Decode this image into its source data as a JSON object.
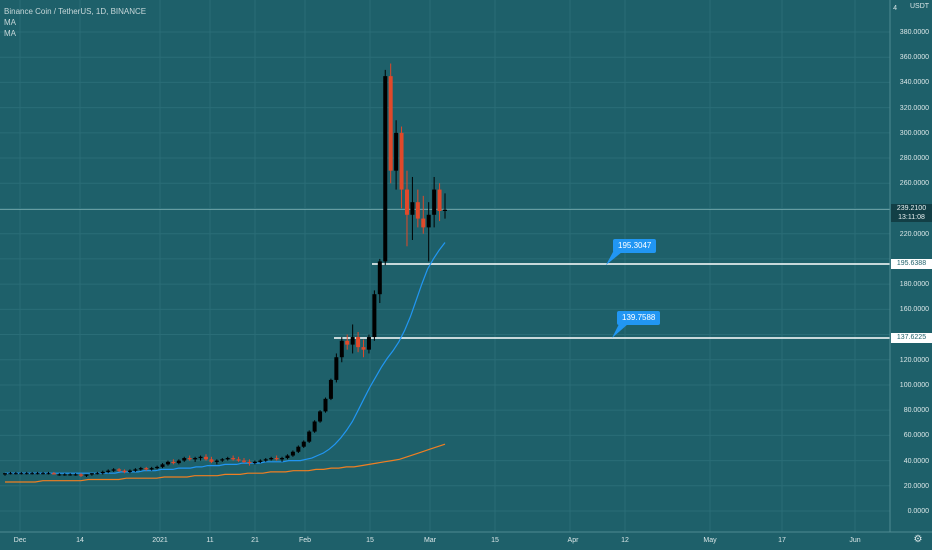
{
  "legend": {
    "title": "Binance Coin / TetherUS, 1D, BINANCE",
    "ma1": "MA",
    "ma2": "MA"
  },
  "currency": "USDT",
  "price_axis": {
    "labels": [
      "380.0000",
      "360.0000",
      "340.0000",
      "320.0000",
      "300.0000",
      "280.0000",
      "260.0000",
      "220.0000",
      "180.0000",
      "160.0000",
      "120.0000",
      "100.0000",
      "80.0000",
      "60.0000",
      "40.0000",
      "20.0000",
      "0.0000"
    ],
    "top_label": "4"
  },
  "date_axis": [
    "Dec",
    "14",
    "2021",
    "11",
    "21",
    "Feb",
    "15",
    "Mar",
    "15",
    "Apr",
    "12",
    "May",
    "17",
    "Jun"
  ],
  "current_price": {
    "value": "239.2100",
    "countdown": "13:11:08"
  },
  "levels": [
    {
      "tag": "195.6388",
      "callout": "195.3047"
    },
    {
      "tag": "137.6225",
      "callout": "139.7588"
    }
  ],
  "colors": {
    "background": "#1e606a",
    "up": "#000000",
    "down": "#e0492a",
    "ma_fast": "#2196f3",
    "ma_slow": "#ef7f22",
    "level_line": "#ffffff",
    "callout": "#2196f3"
  },
  "icons": {
    "settings": "gear-icon"
  },
  "chart_data": {
    "type": "candlestick",
    "symbol": "Binance Coin / TetherUS",
    "y_range": [
      0,
      390
    ],
    "candles_ohlc": [
      [
        29,
        30,
        28,
        30
      ],
      [
        30,
        31,
        29,
        30
      ],
      [
        30,
        31,
        29,
        30
      ],
      [
        30,
        31,
        29,
        30
      ],
      [
        30,
        31,
        29,
        30
      ],
      [
        30,
        31,
        29,
        30
      ],
      [
        30,
        31,
        29,
        30
      ],
      [
        30,
        31,
        29,
        30
      ],
      [
        30,
        31,
        29,
        30
      ],
      [
        30,
        31,
        29,
        29
      ],
      [
        29,
        30,
        28,
        29
      ],
      [
        29,
        30,
        28,
        29
      ],
      [
        29,
        30,
        28,
        29
      ],
      [
        29,
        30,
        28,
        29
      ],
      [
        29,
        30,
        27,
        28
      ],
      [
        28,
        29,
        27,
        29
      ],
      [
        29,
        30,
        28,
        30
      ],
      [
        30,
        31,
        29,
        30
      ],
      [
        30,
        32,
        29,
        31
      ],
      [
        31,
        33,
        30,
        32
      ],
      [
        32,
        34,
        31,
        33
      ],
      [
        33,
        34,
        31,
        32
      ],
      [
        32,
        33,
        30,
        31
      ],
      [
        31,
        33,
        30,
        32
      ],
      [
        32,
        34,
        31,
        33
      ],
      [
        33,
        35,
        32,
        34
      ],
      [
        34,
        35,
        32,
        33
      ],
      [
        33,
        35,
        32,
        34
      ],
      [
        34,
        36,
        33,
        35
      ],
      [
        35,
        38,
        34,
        37
      ],
      [
        37,
        40,
        36,
        39
      ],
      [
        39,
        41,
        37,
        38
      ],
      [
        38,
        41,
        37,
        40
      ],
      [
        40,
        43,
        39,
        42
      ],
      [
        42,
        44,
        40,
        41
      ],
      [
        41,
        43,
        39,
        42
      ],
      [
        42,
        44,
        40,
        43
      ],
      [
        43,
        45,
        40,
        41
      ],
      [
        41,
        43,
        38,
        39
      ],
      [
        39,
        41,
        37,
        40
      ],
      [
        40,
        42,
        39,
        41
      ],
      [
        41,
        43,
        40,
        42
      ],
      [
        42,
        44,
        40,
        41
      ],
      [
        41,
        43,
        39,
        40
      ],
      [
        40,
        42,
        38,
        39
      ],
      [
        39,
        41,
        36,
        38
      ],
      [
        38,
        40,
        37,
        39
      ],
      [
        39,
        41,
        38,
        40
      ],
      [
        40,
        42,
        39,
        41
      ],
      [
        41,
        43,
        40,
        42
      ],
      [
        42,
        44,
        40,
        41
      ],
      [
        41,
        43,
        39,
        42
      ],
      [
        42,
        45,
        41,
        44
      ],
      [
        44,
        48,
        43,
        47
      ],
      [
        47,
        52,
        46,
        51
      ],
      [
        51,
        56,
        50,
        55
      ],
      [
        55,
        64,
        54,
        63
      ],
      [
        63,
        72,
        62,
        71
      ],
      [
        71,
        80,
        70,
        79
      ],
      [
        79,
        90,
        78,
        89
      ],
      [
        89,
        105,
        88,
        104
      ],
      [
        104,
        125,
        102,
        122
      ],
      [
        122,
        138,
        118,
        135
      ],
      [
        135,
        140,
        128,
        132
      ],
      [
        132,
        148,
        125,
        138
      ],
      [
        138,
        142,
        126,
        130
      ],
      [
        130,
        136,
        122,
        128
      ],
      [
        128,
        140,
        125,
        138
      ],
      [
        138,
        175,
        135,
        172
      ],
      [
        172,
        200,
        165,
        198
      ],
      [
        198,
        350,
        195,
        345
      ],
      [
        345,
        355,
        260,
        270
      ],
      [
        270,
        310,
        255,
        300
      ],
      [
        300,
        305,
        240,
        255
      ],
      [
        255,
        270,
        210,
        235
      ],
      [
        235,
        265,
        215,
        245
      ],
      [
        245,
        255,
        225,
        232
      ],
      [
        232,
        250,
        220,
        225
      ],
      [
        225,
        245,
        198,
        235
      ],
      [
        235,
        265,
        225,
        255
      ],
      [
        255,
        260,
        230,
        238
      ],
      [
        238,
        252,
        232,
        239
      ]
    ],
    "ma_fast": [
      30,
      30,
      30,
      30,
      30,
      30,
      30,
      30,
      30,
      30,
      30,
      30,
      30,
      30,
      30,
      30,
      30,
      30,
      30,
      30,
      31,
      31,
      31,
      31,
      32,
      32,
      32,
      33,
      33,
      33,
      34,
      34,
      34,
      35,
      35,
      36,
      36,
      36,
      37,
      37,
      37,
      38,
      38,
      38,
      38,
      39,
      39,
      39,
      39,
      40,
      40,
      40,
      41,
      42,
      44,
      46,
      49,
      53,
      58,
      64,
      71,
      80,
      89,
      98,
      106,
      114,
      121,
      127,
      134,
      143,
      154,
      167,
      180,
      192,
      200,
      207,
      213
    ],
    "ma_slow": [
      23,
      23,
      23,
      23,
      23,
      24,
      24,
      24,
      24,
      24,
      24,
      25,
      25,
      25,
      25,
      25,
      26,
      26,
      26,
      26,
      26,
      27,
      27,
      27,
      27,
      28,
      28,
      28,
      28,
      29,
      29,
      29,
      30,
      30,
      30,
      31,
      31,
      31,
      32,
      32,
      32,
      33,
      33,
      34,
      34,
      35,
      35,
      36,
      37,
      38,
      39,
      40,
      41,
      43,
      45,
      47,
      49,
      51,
      53
    ]
  }
}
